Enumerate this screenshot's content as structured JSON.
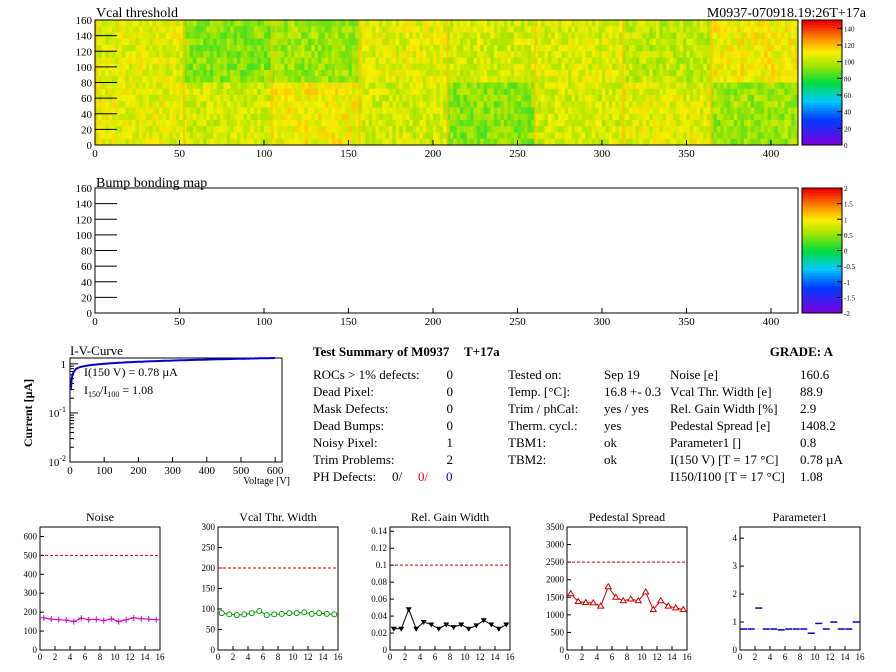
{
  "vcal_map": {
    "title": "Vcal threshold",
    "module_label": "M0937-070918.19:26T+17a",
    "x_ticks": [
      "0",
      "50",
      "100",
      "150",
      "200",
      "250",
      "300",
      "350",
      "400"
    ],
    "y_ticks": [
      "0",
      "20",
      "40",
      "60",
      "80",
      "100",
      "120",
      "140",
      "160"
    ],
    "x_range": [
      0,
      416
    ],
    "y_range": [
      0,
      160
    ],
    "scale_ticks": [
      "0",
      "20",
      "40",
      "60",
      "80",
      "100",
      "120",
      "140"
    ],
    "scale_range": [
      0,
      150
    ]
  },
  "bump_map": {
    "title": "Bump bonding map",
    "x_ticks": [
      "0",
      "50",
      "100",
      "150",
      "200",
      "250",
      "300",
      "350",
      "400"
    ],
    "y_ticks": [
      "0",
      "20",
      "40",
      "60",
      "80",
      "100",
      "120",
      "140",
      "160"
    ],
    "x_range": [
      0,
      416
    ],
    "y_range": [
      0,
      160
    ],
    "scale_ticks": [
      "-2",
      "-1.5",
      "-1",
      "-0.5",
      "0",
      "0.5",
      "1",
      "1.5",
      "2"
    ],
    "scale_range": [
      -2,
      2
    ]
  },
  "iv_curve": {
    "title": "I-V-Curve",
    "ylabel": "Current [µA]",
    "xlabel": "Voltage [V]",
    "annotation1": "I(150 V) = 0.78 µA",
    "annotation2_prefix": "I",
    "annotation2_sub1": "150",
    "annotation2_mid": "/I",
    "annotation2_sub2": "100",
    "annotation2_suffix": " =  1.08",
    "x_ticks": [
      "0",
      "100",
      "200",
      "300",
      "400",
      "500",
      "600"
    ],
    "y_ticks": [
      "1",
      "10",
      "10"
    ],
    "y_tick_exps": [
      "",
      "-1",
      "-2"
    ],
    "x_range": [
      0,
      620
    ],
    "color": "#0000cc"
  },
  "summary": {
    "title": "Test Summary of M0937",
    "suffix": "T+17a",
    "grade": "GRADE:  A",
    "left_rows": [
      {
        "label": "ROCs > 1% defects:",
        "value": "0"
      },
      {
        "label": "Dead Pixel:",
        "value": "0"
      },
      {
        "label": "Mask Defects:",
        "value": "0"
      },
      {
        "label": "Dead Bumps:",
        "value": "0"
      },
      {
        "label": "Noisy Pixel:",
        "value": "1"
      },
      {
        "label": "Trim Problems:",
        "value": "2"
      }
    ],
    "ph_label": "PH Defects:",
    "ph_values": [
      {
        "value": "0/",
        "color": "#000000"
      },
      {
        "value": "0/",
        "color": "#ff0000"
      },
      {
        "value": "0",
        "color": "#0000cc"
      }
    ],
    "mid_rows": [
      {
        "label": "Tested on:",
        "value": "Sep 19"
      },
      {
        "label": "Temp. [°C]:",
        "value": "16.8 +- 0.3"
      },
      {
        "label": "Trim / phCal:",
        "value": "yes / yes"
      },
      {
        "label": "Therm. cycl.:",
        "value": "yes"
      },
      {
        "label": "TBM1:",
        "value": "ok"
      },
      {
        "label": "TBM2:",
        "value": "ok"
      }
    ],
    "right_rows": [
      {
        "label": "Noise [e]",
        "value": "160.6"
      },
      {
        "label": "Vcal Thr. Width [e]",
        "value": "88.9"
      },
      {
        "label": "Rel. Gain Width [%]",
        "value": "2.9"
      },
      {
        "label": "Pedestal Spread [e]",
        "value": "1408.2"
      },
      {
        "label": "Parameter1 []",
        "value": "0.8"
      },
      {
        "label": "I(150 V)  [T = 17 °C]",
        "value": "0.78 µA"
      },
      {
        "label": "I150/I100  [T = 17 °C]",
        "value": "1.08"
      }
    ]
  },
  "chart_data": [
    {
      "type": "line",
      "title": "Noise",
      "color": "#cc00cc",
      "marker": "cross",
      "x": [
        0,
        1,
        2,
        3,
        4,
        5,
        6,
        7,
        8,
        9,
        10,
        11,
        12,
        13,
        14,
        15
      ],
      "values": [
        170,
        163,
        160,
        158,
        150,
        168,
        160,
        162,
        155,
        165,
        150,
        160,
        170,
        165,
        163,
        160
      ],
      "ylim": [
        0,
        650
      ],
      "y_ticks": [
        0,
        100,
        200,
        300,
        400,
        500,
        600
      ],
      "threshold": 500
    },
    {
      "type": "line",
      "title": "Vcal Thr. Width",
      "color": "#009900",
      "marker": "circle",
      "x": [
        0,
        1,
        2,
        3,
        4,
        5,
        6,
        7,
        8,
        9,
        10,
        11,
        12,
        13,
        14,
        15
      ],
      "values": [
        90,
        87,
        85,
        87,
        90,
        95,
        85,
        87,
        88,
        90,
        90,
        92,
        88,
        90,
        88,
        87
      ],
      "ylim": [
        0,
        300
      ],
      "y_ticks": [
        0,
        50,
        100,
        150,
        200,
        250,
        300
      ],
      "threshold": 200
    },
    {
      "type": "line",
      "title": "Rel. Gain Width",
      "color": "#000000",
      "marker": "triangle-down",
      "x": [
        0,
        1,
        2,
        3,
        4,
        5,
        6,
        7,
        8,
        9,
        10,
        11,
        12,
        13,
        14,
        15
      ],
      "values": [
        0.025,
        0.025,
        0.048,
        0.025,
        0.033,
        0.03,
        0.025,
        0.03,
        0.027,
        0.03,
        0.025,
        0.029,
        0.035,
        0.03,
        0.025,
        0.03
      ],
      "ylim": [
        0,
        0.145
      ],
      "y_ticks": [
        0,
        0.02,
        0.04,
        0.06,
        0.08,
        0.1,
        0.12,
        0.14
      ],
      "threshold": 0.1
    },
    {
      "type": "line",
      "title": "Pedestal Spread",
      "color": "#cc0000",
      "marker": "triangle-up",
      "x": [
        0,
        1,
        2,
        3,
        4,
        5,
        6,
        7,
        8,
        9,
        10,
        11,
        12,
        13,
        14,
        15
      ],
      "values": [
        1600,
        1380,
        1350,
        1340,
        1250,
        1800,
        1500,
        1400,
        1450,
        1400,
        1650,
        1150,
        1400,
        1250,
        1200,
        1150
      ],
      "ylim": [
        0,
        3500
      ],
      "y_ticks": [
        0,
        500,
        1000,
        1500,
        2000,
        2500,
        3000,
        3500
      ],
      "threshold": 2500
    },
    {
      "type": "scatter",
      "title": "Parameter1",
      "color": "#0000cc",
      "marker": "hline",
      "x": [
        0,
        1,
        2,
        3,
        4,
        5,
        6,
        7,
        8,
        9,
        10,
        11,
        12,
        13,
        14,
        15
      ],
      "values": [
        0.75,
        0.75,
        1.5,
        0.75,
        0.75,
        0.72,
        0.75,
        0.75,
        0.75,
        0.6,
        0.95,
        0.75,
        1.0,
        0.75,
        0.75,
        1.0
      ],
      "ylim": [
        0,
        4.4
      ],
      "y_ticks": [
        0,
        1,
        2,
        3,
        4
      ],
      "threshold": null
    }
  ],
  "small_x_ticks": [
    "0",
    "2",
    "4",
    "6",
    "8",
    "10",
    "12",
    "14",
    "16"
  ]
}
